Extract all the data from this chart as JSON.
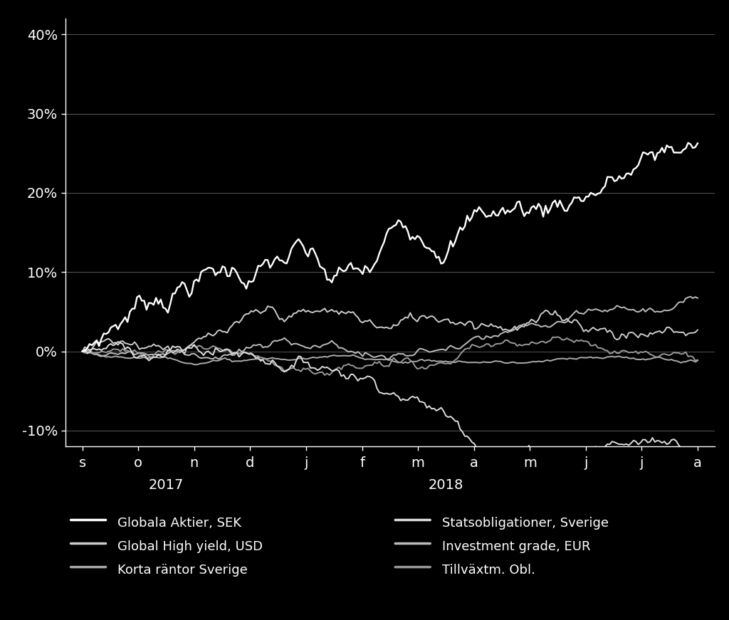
{
  "background_color": "#000000",
  "text_color": "#ffffff",
  "grid_color": "#666666",
  "axis_color": "#ffffff",
  "ylim": [
    -0.12,
    0.42
  ],
  "yticks": [
    -0.1,
    0.0,
    0.1,
    0.2,
    0.3,
    0.4
  ],
  "ytick_labels": [
    "-10%",
    "0%",
    "10%",
    "20%",
    "30%",
    "40%"
  ],
  "x_tick_labels": [
    "s",
    "o",
    "n",
    "d",
    "j",
    "f",
    "m",
    "a",
    "m",
    "j",
    "j",
    "a"
  ],
  "legend_left": [
    "Globala Aktier, SEK",
    "Global High yield, USD",
    "Korta räntor Sverige"
  ],
  "legend_right": [
    "Statsobligationer, Sverige",
    "Investment grade, EUR",
    "Tillväxtm. Obl."
  ],
  "n_points": 260,
  "line_width": 1.4,
  "font_size": 14,
  "legend_font_size": 13
}
